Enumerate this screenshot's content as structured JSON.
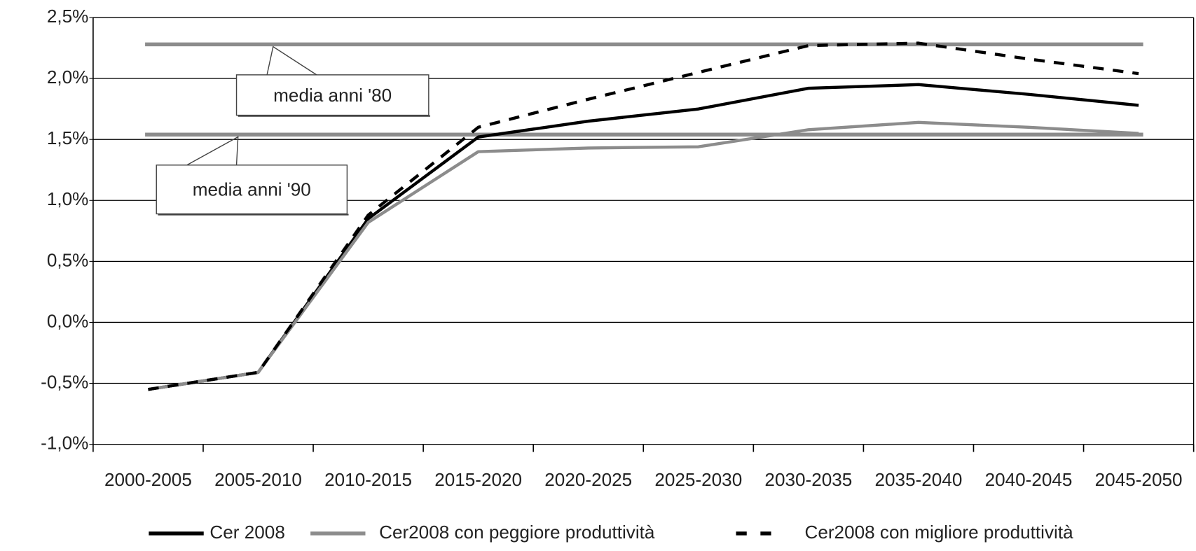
{
  "chart_data": {
    "type": "line",
    "categories": [
      "2000-2005",
      "2005-2010",
      "2010-2015",
      "2015-2020",
      "2020-2025",
      "2025-2030",
      "2030-2035",
      "2035-2040",
      "2040-2045",
      "2045-2050"
    ],
    "series": [
      {
        "name": "Cer 2008",
        "color": "#000000",
        "dash": false,
        "values": [
          -0.55,
          -0.41,
          0.85,
          1.52,
          1.65,
          1.75,
          1.92,
          1.95,
          1.87,
          1.78
        ]
      },
      {
        "name": "Cer2008 con peggiore produttività",
        "color": "#8c8c8c",
        "dash": false,
        "values": [
          -0.55,
          -0.41,
          0.82,
          1.4,
          1.43,
          1.44,
          1.58,
          1.64,
          1.6,
          1.55
        ]
      },
      {
        "name": "Cer2008 con migliore produttività",
        "color": "#000000",
        "dash": true,
        "values": [
          -0.55,
          -0.41,
          0.88,
          1.6,
          1.83,
          2.05,
          2.27,
          2.29,
          2.16,
          2.04
        ]
      }
    ],
    "reference_lines": [
      {
        "label": "media anni '80",
        "value": 2.28,
        "color": "#8c8c8c"
      },
      {
        "label": "media anni '90",
        "value": 1.54,
        "color": "#8c8c8c"
      }
    ],
    "ylim": [
      -1.0,
      2.5
    ],
    "yticks": [
      {
        "value": -1.0,
        "label": "-1,0%"
      },
      {
        "value": -0.5,
        "label": "-0,5%"
      },
      {
        "value": 0,
        "label": "0,0%"
      },
      {
        "value": 0.5,
        "label": "0,5%"
      },
      {
        "value": 1.0,
        "label": "1,0%"
      },
      {
        "value": 1.5,
        "label": "1,5%"
      },
      {
        "value": 2.0,
        "label": "2,0%"
      },
      {
        "value": 2.5,
        "label": "2,5%"
      }
    ],
    "grid": true
  }
}
